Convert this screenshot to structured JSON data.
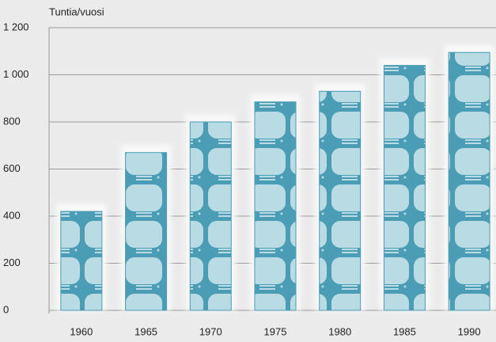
{
  "chart_data": {
    "type": "bar",
    "y_label": "Tuntia/vuosi",
    "categories": [
      "1960",
      "1965",
      "1970",
      "1975",
      "1980",
      "1985",
      "1990"
    ],
    "values": [
      420,
      670,
      800,
      885,
      930,
      1040,
      1095
    ],
    "color": "#4a9db4",
    "ylim": [
      0,
      1200
    ],
    "yticks": [
      0,
      200,
      400,
      600,
      800,
      {
        "value": 1000,
        "label": "1 000"
      },
      {
        "value": 1200,
        "label": "1 200"
      }
    ],
    "grid": true
  }
}
